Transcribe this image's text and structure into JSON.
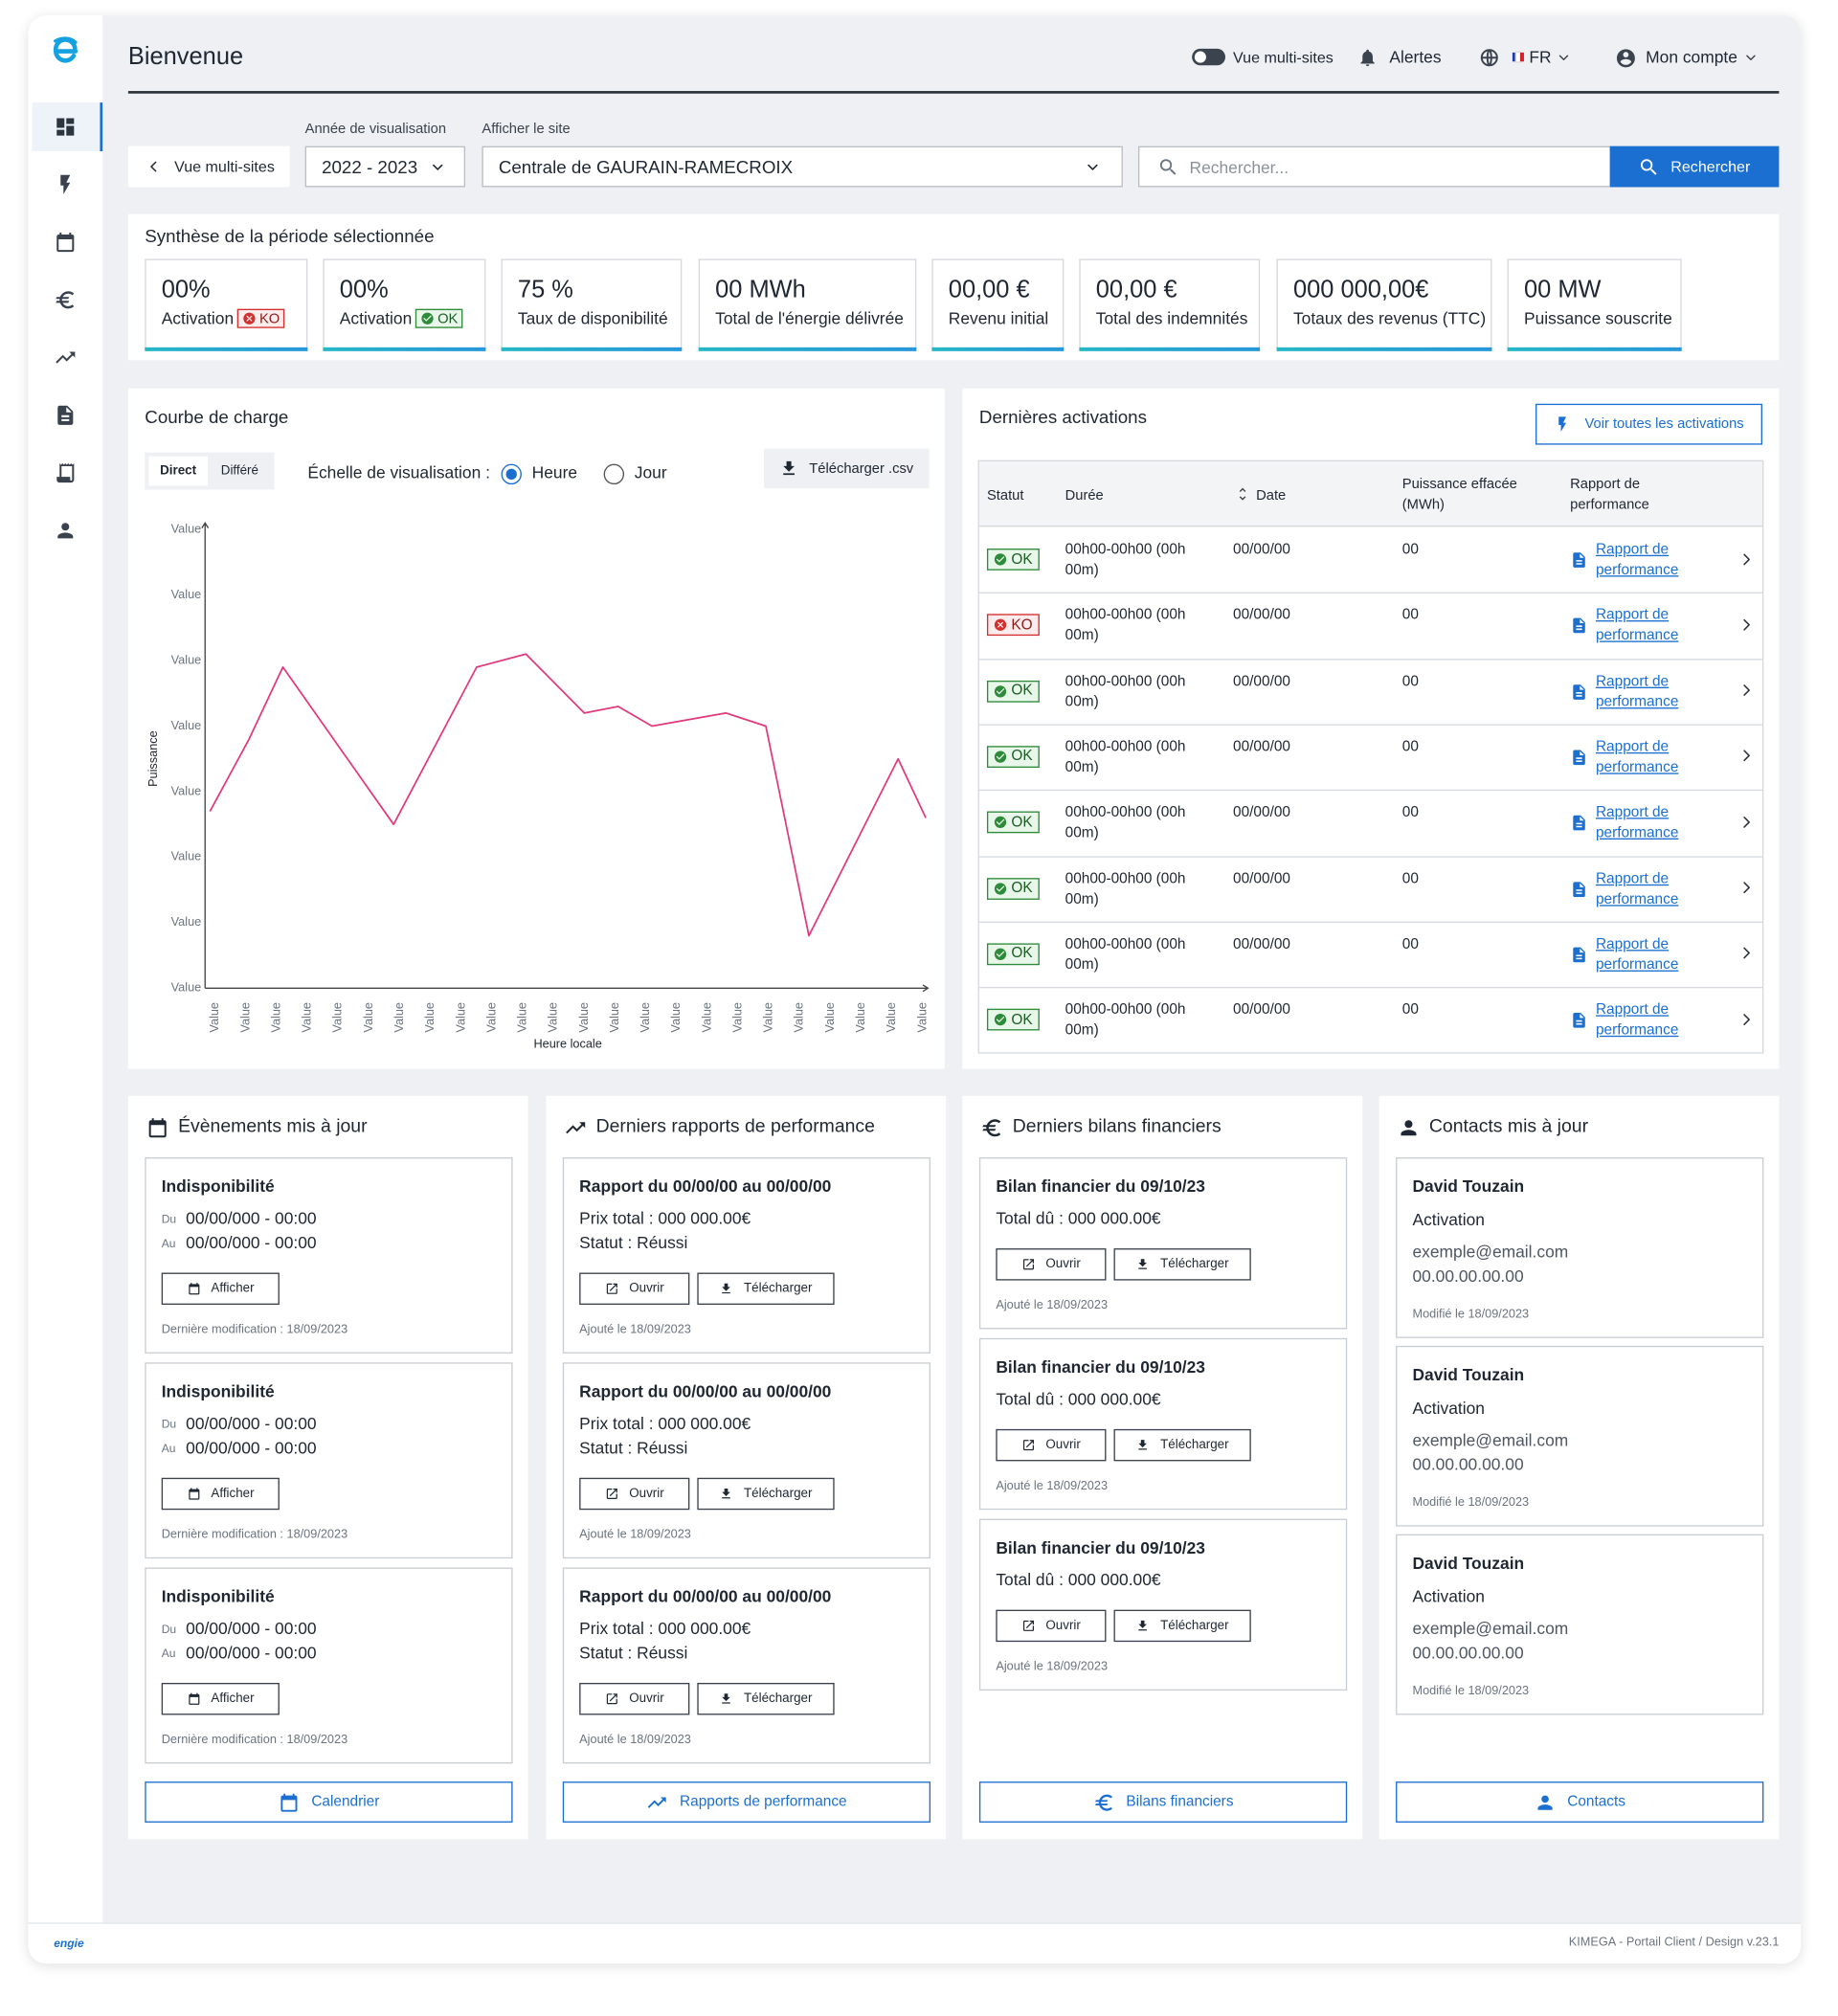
{
  "header": {
    "title": "Bienvenue",
    "toggle": "Vue multi-sites",
    "alerts": "Alertes",
    "lang": "FR",
    "account": "Mon compte"
  },
  "filters": {
    "back": "Vue multi-sites",
    "year_label": "Année de visualisation",
    "year": "2022 - 2023",
    "site_label": "Afficher le site",
    "site": "Centrale de GAURAIN-RAMECROIX",
    "search_placeholder": "Rechercher...",
    "search_button": "Rechercher"
  },
  "summary": {
    "title": "Synthèse de la période sélectionnée",
    "cards": [
      {
        "value": "00%",
        "label": "Activation",
        "badge": "KO"
      },
      {
        "value": "00%",
        "label": "Activation",
        "badge": "OK"
      },
      {
        "value": "75 %",
        "label": "Taux de disponibilité"
      },
      {
        "value": "00 MWh",
        "label": "Total de l'énergie délivrée"
      },
      {
        "value": "00,00 €",
        "label": "Revenu initial"
      },
      {
        "value": "00,00 €",
        "label": "Total des indemnités"
      },
      {
        "value": "000 000,00€",
        "label": "Totaux des revenus (TTC)"
      },
      {
        "value": "00 MW",
        "label": "Puissance souscrite"
      }
    ]
  },
  "load_curve_controls": {
    "tabs": [
      "Direct",
      "Différé"
    ],
    "scale_label": "Échelle de visualisation :",
    "options": [
      "Heure",
      "Jour"
    ],
    "download": "Télécharger .csv"
  },
  "chart_data": {
    "type": "line",
    "title": "Courbe de charge",
    "y_label": "Puissance",
    "x_label": "Heure locale",
    "x": [
      -0.17,
      1.1,
      2.2,
      5.8,
      8.5,
      10.1,
      12.0,
      13.1,
      14.2,
      16.6,
      17.9,
      19.3,
      22.2,
      23.1
    ],
    "series": [
      {
        "color": "#e0397d",
        "values": [
          2.7,
          3.8,
          4.9,
          2.5,
          4.9,
          5.1,
          4.2,
          4.3,
          4.0,
          4.2,
          4.0,
          0.8,
          3.5,
          2.6
        ]
      }
    ],
    "xlim": [
      -0.33,
      23.17
    ],
    "ylim": [
      0,
      7.1
    ],
    "xticks": [
      {
        "value": 0,
        "label": "Value"
      },
      {
        "value": 1,
        "label": "Value"
      },
      {
        "value": 2,
        "label": "Value"
      },
      {
        "value": 3,
        "label": "Value"
      },
      {
        "value": 4,
        "label": "Value"
      },
      {
        "value": 5,
        "label": "Value"
      },
      {
        "value": 6,
        "label": "Value"
      },
      {
        "value": 7,
        "label": "Value"
      },
      {
        "value": 8,
        "label": "Value"
      },
      {
        "value": 9,
        "label": "Value"
      },
      {
        "value": 10,
        "label": "Value"
      },
      {
        "value": 11,
        "label": "Value"
      },
      {
        "value": 12,
        "label": "Value"
      },
      {
        "value": 13,
        "label": "Value"
      },
      {
        "value": 14,
        "label": "Value"
      },
      {
        "value": 15,
        "label": "Value"
      },
      {
        "value": 16,
        "label": "Value"
      },
      {
        "value": 17,
        "label": "Value"
      },
      {
        "value": 18,
        "label": "Value"
      },
      {
        "value": 19,
        "label": "Value"
      },
      {
        "value": 20,
        "label": "Value"
      },
      {
        "value": 21,
        "label": "Value"
      },
      {
        "value": 22,
        "label": "Value"
      },
      {
        "value": 23,
        "label": "Value"
      }
    ],
    "yticks": [
      {
        "value": 0,
        "label": "Value"
      },
      {
        "value": 1,
        "label": "Value"
      },
      {
        "value": 2,
        "label": "Value"
      },
      {
        "value": 3,
        "label": "Value"
      },
      {
        "value": 4,
        "label": "Value"
      },
      {
        "value": 5,
        "label": "Value"
      },
      {
        "value": 6,
        "label": "Value"
      },
      {
        "value": 7,
        "label": "Value"
      }
    ],
    "grid": false
  },
  "activations": {
    "title": "Dernières activations",
    "button": "Voir toutes les activations",
    "columns": [
      "Statut",
      "Durée",
      "Date",
      "Puissance effacée (MWh)",
      "Rapport de performance"
    ],
    "rows": [
      {
        "status": "OK",
        "duration": "00h00-00h00 (00h 00m)",
        "date": "00/00/00",
        "power": "00",
        "report": "Rapport de performance"
      },
      {
        "status": "KO",
        "duration": "00h00-00h00 (00h 00m)",
        "date": "00/00/00",
        "power": "00",
        "report": "Rapport de performance"
      },
      {
        "status": "OK",
        "duration": "00h00-00h00 (00h 00m)",
        "date": "00/00/00",
        "power": "00",
        "report": "Rapport de performance"
      },
      {
        "status": "OK",
        "duration": "00h00-00h00 (00h 00m)",
        "date": "00/00/00",
        "power": "00",
        "report": "Rapport de performance"
      },
      {
        "status": "OK",
        "duration": "00h00-00h00 (00h 00m)",
        "date": "00/00/00",
        "power": "00",
        "report": "Rapport de performance"
      },
      {
        "status": "OK",
        "duration": "00h00-00h00 (00h 00m)",
        "date": "00/00/00",
        "power": "00",
        "report": "Rapport de performance"
      },
      {
        "status": "OK",
        "duration": "00h00-00h00 (00h 00m)",
        "date": "00/00/00",
        "power": "00",
        "report": "Rapport de performance"
      },
      {
        "status": "OK",
        "duration": "00h00-00h00 (00h 00m)",
        "date": "00/00/00",
        "power": "00",
        "report": "Rapport de performance"
      }
    ]
  },
  "events": {
    "title": "Évènements mis à jour",
    "footer": "Calendrier",
    "items": [
      {
        "title": "Indisponibilité",
        "from_label": "Du",
        "from": "00/00/000 - 00:00",
        "to_label": "Au",
        "to": "00/00/000 - 00:00",
        "button": "Afficher",
        "modified": "Dernière modification : 18/09/2023"
      },
      {
        "title": "Indisponibilité",
        "from_label": "Du",
        "from": "00/00/000 - 00:00",
        "to_label": "Au",
        "to": "00/00/000 - 00:00",
        "button": "Afficher",
        "modified": "Dernière modification : 18/09/2023"
      },
      {
        "title": "Indisponibilité",
        "from_label": "Du",
        "from": "00/00/000 - 00:00",
        "to_label": "Au",
        "to": "00/00/000 - 00:00",
        "button": "Afficher",
        "modified": "Dernière modification : 18/09/2023"
      }
    ]
  },
  "reports": {
    "title": "Derniers rapports de performance",
    "footer": "Rapports de performance",
    "items": [
      {
        "title": "Rapport du 00/00/00 au 00/00/00",
        "price": "Prix total : 000 000.00€",
        "status": "Statut : Réussi",
        "open": "Ouvrir",
        "download": "Télécharger",
        "added": "Ajouté le 18/09/2023"
      },
      {
        "title": "Rapport du 00/00/00 au 00/00/00",
        "price": "Prix total : 000 000.00€",
        "status": "Statut : Réussi",
        "open": "Ouvrir",
        "download": "Télécharger",
        "added": "Ajouté le 18/09/2023"
      },
      {
        "title": "Rapport du 00/00/00 au 00/00/00",
        "price": "Prix total : 000 000.00€",
        "status": "Statut : Réussi",
        "open": "Ouvrir",
        "download": "Télécharger",
        "added": "Ajouté le 18/09/2023"
      }
    ]
  },
  "financials": {
    "title": "Derniers bilans financiers",
    "footer": "Bilans financiers",
    "items": [
      {
        "title": "Bilan financier du 09/10/23",
        "total": "Total dû : 000 000.00€",
        "open": "Ouvrir",
        "download": "Télécharger",
        "added": "Ajouté le 18/09/2023"
      },
      {
        "title": "Bilan financier du 09/10/23",
        "total": "Total dû : 000 000.00€",
        "open": "Ouvrir",
        "download": "Télécharger",
        "added": "Ajouté le 18/09/2023"
      },
      {
        "title": "Bilan financier du 09/10/23",
        "total": "Total dû : 000 000.00€",
        "open": "Ouvrir",
        "download": "Télécharger",
        "added": "Ajouté le 18/09/2023"
      }
    ]
  },
  "contacts": {
    "title": "Contacts mis à jour",
    "footer": "Contacts",
    "items": [
      {
        "name": "David Touzain",
        "role": "Activation",
        "email": "exemple@email.com",
        "phone": "00.00.00.00.00",
        "modified": "Modifié le 18/09/2023"
      },
      {
        "name": "David Touzain",
        "role": "Activation",
        "email": "exemple@email.com",
        "phone": "00.00.00.00.00",
        "modified": "Modifié le 18/09/2023"
      },
      {
        "name": "David Touzain",
        "role": "Activation",
        "email": "exemple@email.com",
        "phone": "00.00.00.00.00",
        "modified": "Modifié le 18/09/2023"
      }
    ]
  },
  "footer": {
    "brand": "engie",
    "credit": "KIMEGA - Portail Client / Design v.23.1"
  }
}
